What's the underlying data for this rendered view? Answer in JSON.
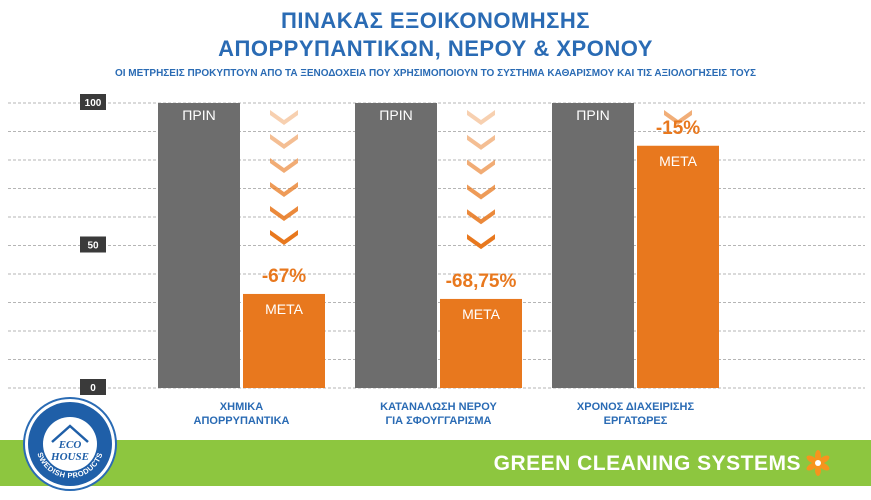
{
  "header": {
    "title_line1": "ΠΙΝΑΚΑΣ ΕΞΟΙΚΟΝΟΜΗΣΗΣ",
    "title_line2": "ΑΠΟΡΡΥΠΑΝΤΙΚΩΝ, ΝΕΡΟΥ & ΧΡΟΝΟΥ",
    "subtitle": "ΟΙ ΜΕΤΡΗΣΕΙΣ ΠΡΟΚΥΠΤΟΥΝ ΑΠΟ ΤΑ ΞΕΝΟΔΟΧΕΙΑ ΠΟΥ ΧΡΗΣΙΜΟΠΟΙΟΥΝ ΤΟ ΣΥΣΤΗΜΑ ΚΑΘΑΡΙΣΜΟΥ ΚΑΙ ΤΙΣ ΑΞΙΟΛΟΓΗΣΕΙΣ ΤΟΥΣ"
  },
  "chart_data": {
    "type": "bar",
    "categories": [
      [
        "ΧΗΜΙΚΑ",
        "ΑΠΟΡΡΥΠΑΝΤΙΚΑ"
      ],
      [
        "ΚΑΤΑΝΑΛΩΣΗ ΝΕΡΟΥ",
        "ΓΙΑ ΣΦΟΥΓΓΑΡΙΣΜΑ"
      ],
      [
        "ΧΡΟΝΟΣ ΔΙΑΧΕΙΡΙΣΗΣ",
        "ΕΡΓΑΤΩΡΕΣ"
      ]
    ],
    "series": [
      {
        "name": "ΠΡΙΝ",
        "values": [
          100,
          100,
          100
        ],
        "color": "#6d6d6d"
      },
      {
        "name": "ΜΕΤΑ",
        "values": [
          33,
          31.25,
          85
        ],
        "color": "#e8781e"
      }
    ],
    "reductions": [
      "-67%",
      "-68,75%",
      "-15%"
    ],
    "ylim": [
      0,
      100
    ],
    "yticks": [
      "0",
      "50",
      "100"
    ],
    "grid": true
  },
  "footer": {
    "brand": "GREEN CLEANING SYSTEMS"
  },
  "logo": {
    "line1": "ECO",
    "line2": "HOUSE",
    "ring_text": "SWEDISH PRODUCTS"
  },
  "colors": {
    "title": "#2a6bb4",
    "before": "#6d6d6d",
    "after": "#e8781e",
    "footer": "#8dc63f"
  }
}
